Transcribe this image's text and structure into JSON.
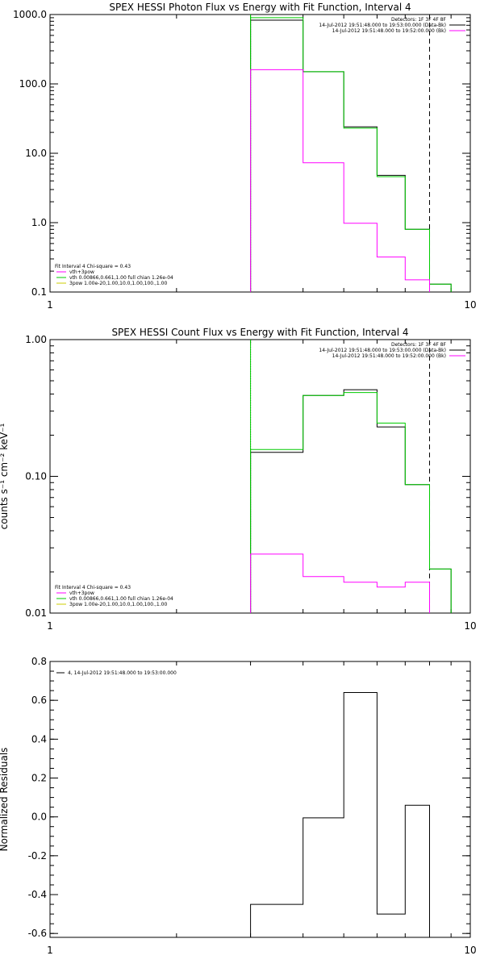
{
  "chart_data": [
    {
      "id": "photon",
      "type": "line",
      "title": "SPEX HESSI Photon Flux vs Energy with Fit Function, Interval 4",
      "xlabel": "",
      "ylabel": "",
      "xscale": "log",
      "yscale": "log",
      "xlim": [
        1,
        10
      ],
      "ylim": [
        0.1,
        1000
      ],
      "x_ticks": [
        {
          "v": 1,
          "label": "1"
        },
        {
          "v": 10,
          "label": "10"
        }
      ],
      "y_ticks": [
        {
          "v": 0.1,
          "label": "0.1"
        },
        {
          "v": 1,
          "label": "1.0"
        },
        {
          "v": 10,
          "label": "10.0"
        },
        {
          "v": 100,
          "label": "100.0"
        },
        {
          "v": 1000,
          "label": "1000.0"
        }
      ],
      "vlines": [
        {
          "x": 3,
          "style": "dotted",
          "color": "#000000"
        },
        {
          "x": 3,
          "style": "solid",
          "color": "#00cc00"
        },
        {
          "x": 8,
          "style": "dashed",
          "color": "#000000"
        }
      ],
      "edges": [
        3,
        4,
        5,
        6,
        7,
        8,
        9
      ],
      "series": [
        {
          "name": "data",
          "color": "#000000",
          "values": [
            830,
            150,
            24,
            4.8,
            0.8,
            0.13
          ]
        },
        {
          "name": "vth+3pow",
          "color": "#00cc00",
          "values": [
            900,
            150,
            23,
            4.6,
            0.8,
            0.13
          ]
        },
        {
          "name": "bk",
          "color": "#ff00ff",
          "values": [
            160,
            7.3,
            0.98,
            0.32,
            0.15,
            null
          ]
        }
      ],
      "header_lines": [
        {
          "text": "Detectors: 1F 3F 4F 8F",
          "color": "#000000"
        },
        {
          "text": "14-Jul-2012 19:51:48.000 to 19:53:00.000 (Data-Bk)",
          "color": "#000000",
          "marker": "#000000"
        },
        {
          "text": "14-Jul-2012 19:51:48.000 to 19:52:00.000 (Bk)",
          "color": "#000000",
          "marker": "#ff00ff"
        }
      ],
      "fit_lines": [
        {
          "text": "Fit Interval 4   Chi-square = 0.43",
          "color": "#000000"
        },
        {
          "text": "vth+3pow",
          "color": "#000000",
          "marker": "#ff00ff"
        },
        {
          "text": "vth 0.00866,0.661,1.00   full chian 1.26e-04",
          "color": "#000000",
          "marker": "#00cc00"
        },
        {
          "text": "3pow 1.00e-20,1.00,10.0,1.00,100.,1.00",
          "color": "#000000",
          "marker": "#cccc00"
        }
      ]
    },
    {
      "id": "count",
      "type": "line",
      "title": "SPEX HESSI Count Flux vs Energy with Fit Function, Interval 4",
      "xlabel": "",
      "ylabel": "counts s⁻¹ cm⁻² keV⁻¹",
      "xscale": "log",
      "yscale": "log",
      "xlim": [
        1,
        10
      ],
      "ylim": [
        0.01,
        1
      ],
      "x_ticks": [
        {
          "v": 1,
          "label": "1"
        },
        {
          "v": 10,
          "label": "10"
        }
      ],
      "y_ticks": [
        {
          "v": 0.01,
          "label": "0.01"
        },
        {
          "v": 0.1,
          "label": "0.10"
        },
        {
          "v": 1,
          "label": "1.00"
        }
      ],
      "vlines": [
        {
          "x": 3,
          "style": "dotted",
          "color": "#000000"
        },
        {
          "x": 3,
          "style": "solid",
          "color": "#00cc00"
        },
        {
          "x": 8,
          "style": "dashed",
          "color": "#000000"
        }
      ],
      "edges": [
        3,
        4,
        5,
        6,
        7,
        8,
        9
      ],
      "series": [
        {
          "name": "data",
          "color": "#000000",
          "values": [
            0.15,
            0.39,
            0.43,
            0.23,
            0.087,
            0.021
          ]
        },
        {
          "name": "vth+3pow",
          "color": "#00cc00",
          "values": [
            0.157,
            0.39,
            0.41,
            0.245,
            0.087,
            0.021
          ]
        },
        {
          "name": "bk",
          "color": "#ff00ff",
          "values": [
            0.027,
            0.0185,
            0.0168,
            0.0155,
            0.0168,
            null
          ]
        }
      ],
      "header_lines": [
        {
          "text": "Detectors: 1F 3F 4F 8F",
          "color": "#000000"
        },
        {
          "text": "14-Jul-2012 19:51:48.000 to 19:53:00.000 (Data-Bk)",
          "color": "#000000",
          "marker": "#000000"
        },
        {
          "text": "14-Jul-2012 19:51:48.000 to 19:52:00.000 (Bk)",
          "color": "#000000",
          "marker": "#ff00ff"
        }
      ],
      "fit_lines": [
        {
          "text": "Fit Interval 4   Chi-square = 0.43",
          "color": "#000000"
        },
        {
          "text": "vth+3pow",
          "color": "#000000",
          "marker": "#ff00ff"
        },
        {
          "text": "vth 0.00866,0.661,1.00   full chian 1.26e-04",
          "color": "#000000",
          "marker": "#00cc00"
        },
        {
          "text": "3pow 1.00e-20,1.00,10.0,1.00,100.,1.00",
          "color": "#000000",
          "marker": "#cccc00"
        }
      ]
    },
    {
      "id": "residuals",
      "type": "line",
      "title": "",
      "xlabel": "",
      "ylabel": "Normalized Residuals",
      "xscale": "log",
      "yscale": "linear",
      "xlim": [
        1,
        10
      ],
      "ylim": [
        -0.62,
        0.8
      ],
      "x_ticks": [
        {
          "v": 1,
          "label": "1"
        },
        {
          "v": 10,
          "label": "10"
        }
      ],
      "y_ticks": [
        {
          "v": -0.6,
          "label": "-0.6"
        },
        {
          "v": -0.4,
          "label": "-0.4"
        },
        {
          "v": -0.2,
          "label": "-0.2"
        },
        {
          "v": 0,
          "label": "0.0"
        },
        {
          "v": 0.2,
          "label": "0.2"
        },
        {
          "v": 0.4,
          "label": "0.4"
        },
        {
          "v": 0.6,
          "label": "0.6"
        },
        {
          "v": 0.8,
          "label": "0.8"
        }
      ],
      "vlines": [],
      "edges": [
        3,
        4,
        5,
        6,
        7,
        8
      ],
      "series": [
        {
          "name": "4, 14-Jul-2012 19:51:48.000 to 19:53:00.000",
          "color": "#000000",
          "values": [
            -0.45,
            -0.005,
            0.64,
            -0.5,
            0.06
          ]
        }
      ],
      "header_lines": [],
      "fit_lines": [],
      "legend_lines": [
        {
          "text": "4, 14-Jul-2012 19:51:48.000 to 19:53:00.000",
          "color": "#000000",
          "marker": "#000000"
        }
      ]
    }
  ]
}
